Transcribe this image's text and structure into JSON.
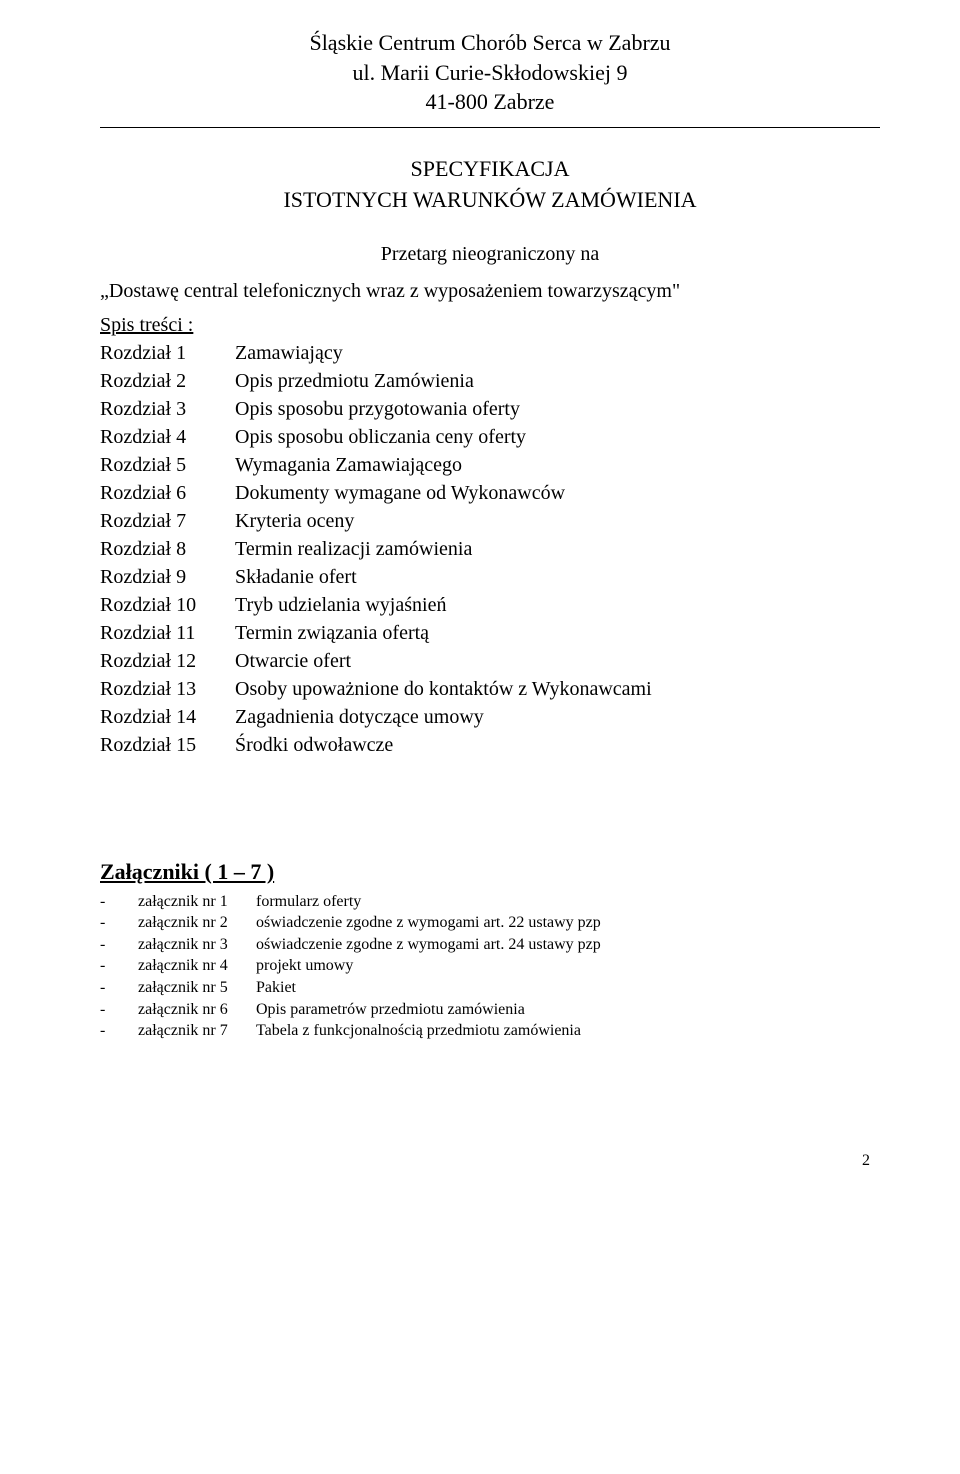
{
  "header": {
    "line1": "Śląskie Centrum Chorób Serca w Zabrzu",
    "line2": "ul. Marii Curie-Skłodowskiej 9",
    "line3": "41-800 Zabrze"
  },
  "docTitle": {
    "line1": "SPECYFIKACJA",
    "line2": "ISTOTNYCH WARUNKÓW ZAMÓWIENIA"
  },
  "subject": {
    "line1": "Przetarg nieograniczony  na",
    "line2": "„Dostawę central telefonicznych wraz z wyposażeniem towarzyszącym\""
  },
  "toc": {
    "heading": " Spis treści :",
    "rows": [
      {
        "label": "Rozdział 1",
        "text": "Zamawiający"
      },
      {
        "label": "Rozdział 2",
        "text": "Opis przedmiotu Zamówienia"
      },
      {
        "label": "Rozdział 3",
        "text": "Opis sposobu przygotowania oferty"
      },
      {
        "label": "Rozdział 4",
        "text": "Opis sposobu obliczania ceny oferty"
      },
      {
        "label": "Rozdział 5",
        "text": "Wymagania Zamawiającego"
      },
      {
        "label": "Rozdział 6",
        "text": "Dokumenty wymagane od Wykonawców"
      },
      {
        "label": "Rozdział 7",
        "text": "Kryteria oceny"
      },
      {
        "label": "Rozdział 8",
        "text": "Termin realizacji zamówienia"
      },
      {
        "label": "Rozdział 9",
        "text": "Składanie ofert"
      },
      {
        "label": "Rozdział 10",
        "text": "Tryb udzielania wyjaśnień"
      },
      {
        "label": "Rozdział 11",
        "text": "Termin związania ofertą"
      },
      {
        "label": "Rozdział 12",
        "text": "Otwarcie ofert"
      },
      {
        "label": "Rozdział 13",
        "text": "Osoby upoważnione do kontaktów z Wykonawcami"
      },
      {
        "label": "Rozdział 14",
        "text": "Zagadnienia dotyczące umowy"
      },
      {
        "label": "Rozdział 15",
        "text": "Środki odwoławcze"
      }
    ]
  },
  "attachments": {
    "heading": "Załączniki ( 1 – 7 )",
    "rows": [
      {
        "label": "załącznik nr 1",
        "text": "formularz oferty"
      },
      {
        "label": "załącznik nr 2",
        "text": "oświadczenie zgodne z wymogami art. 22 ustawy pzp"
      },
      {
        "label": "załącznik nr 3",
        "text": "oświadczenie zgodne z wymogami art.  24 ustawy pzp"
      },
      {
        "label": "załącznik nr 4",
        "text": "projekt umowy"
      },
      {
        "label": "załącznik nr 5",
        "text": "Pakiet"
      },
      {
        "label": "załącznik nr 6",
        "text": "Opis parametrów przedmiotu zamówienia"
      },
      {
        "label": "załącznik nr 7",
        "text": "Tabela z funkcjonalnością przedmiotu zamówienia"
      }
    ]
  },
  "pageNumber": "2"
}
